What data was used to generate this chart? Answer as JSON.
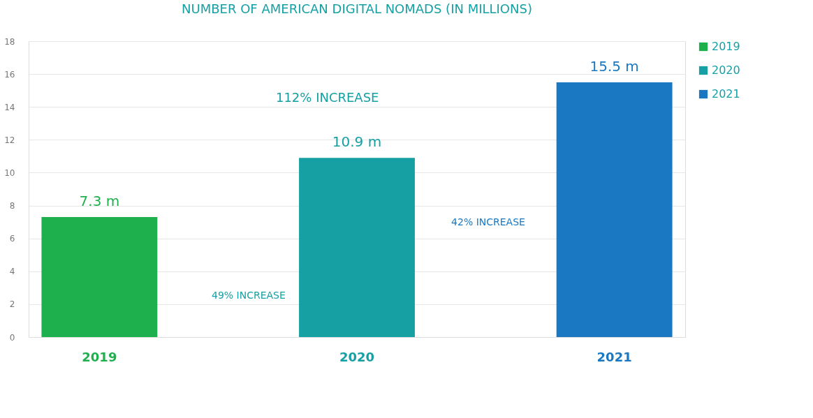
{
  "chart_data": {
    "type": "bar",
    "title": "NUMBER OF AMERICAN DIGITAL NOMADS (IN MILLIONS)",
    "categories": [
      "2019",
      "2020",
      "2021"
    ],
    "series": [
      {
        "name": "2019",
        "color": "#1fb04e",
        "values": [
          7.3,
          null,
          null
        ],
        "value_labels": [
          "7.3 m",
          null,
          null
        ]
      },
      {
        "name": "2020",
        "color": "#16a0a4",
        "values": [
          null,
          10.9,
          null
        ],
        "value_labels": [
          null,
          "10.9 m",
          null
        ]
      },
      {
        "name": "2021",
        "color": "#1a78c2",
        "values": [
          null,
          null,
          15.5
        ],
        "value_labels": [
          null,
          null,
          "15.5 m"
        ]
      }
    ],
    "ylim": [
      0,
      18
    ],
    "yticks": [
      0,
      2,
      4,
      6,
      8,
      10,
      12,
      14,
      16,
      18
    ],
    "grid": "y",
    "legend": "right",
    "annotations": [
      "112% INCREASE",
      "49% INCREASE",
      "42% INCREASE"
    ]
  }
}
